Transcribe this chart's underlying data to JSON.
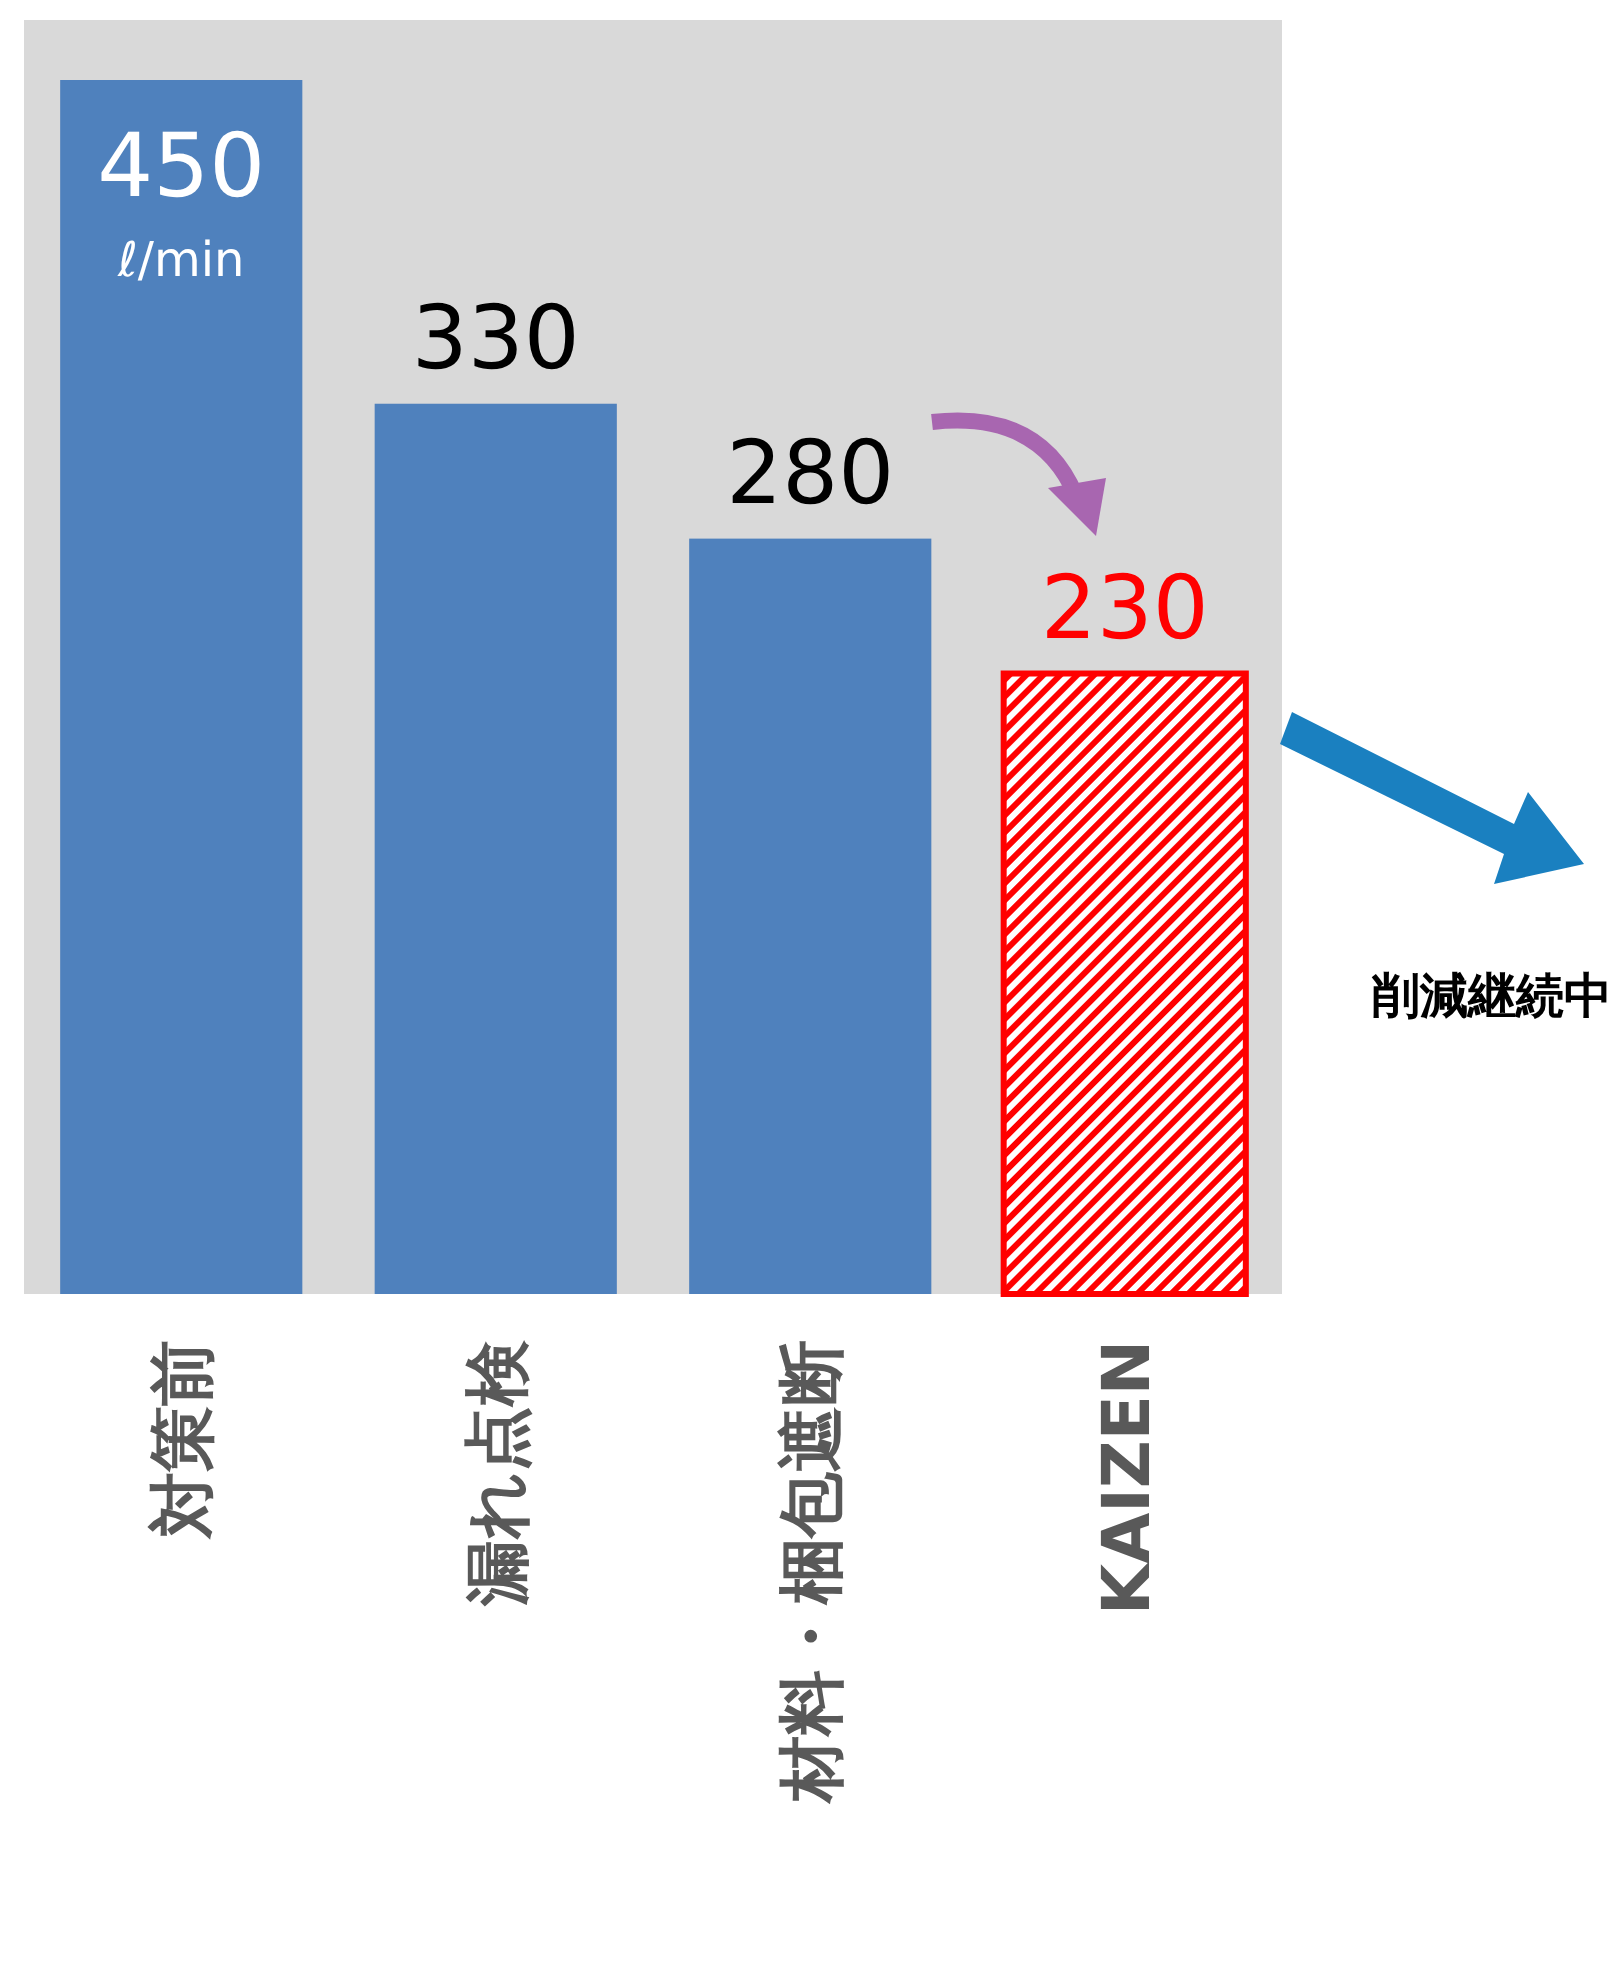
{
  "chart_data": {
    "type": "bar",
    "categories": [
      "対策前",
      "漏れ点検",
      "材料・梱包遮断",
      "KAIZEN"
    ],
    "values": [
      450,
      330,
      280,
      230
    ],
    "colors": [
      "#4f81bd",
      "#4f81bd",
      "#4f81bd",
      "#ff0000"
    ],
    "data_labels": true,
    "annotations": [
      "ℓ/min",
      "削減継続中"
    ]
  }
}
